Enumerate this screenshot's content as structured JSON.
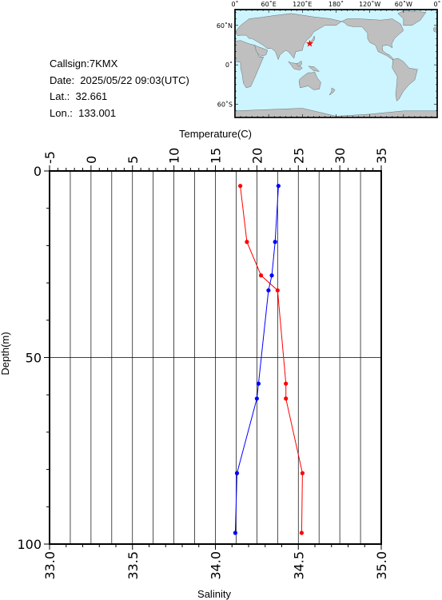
{
  "station": {
    "callsign": "Callsign:7KMX",
    "date": "Date:  2025/05/22 09:03(UTC)",
    "lat": "Lat.:  32.661",
    "lon": "Lon.:  133.001"
  },
  "map": {
    "lon_labels": [
      "0˚",
      "60˚E",
      "120˚E",
      "180˚",
      "120˚W",
      "60˚W",
      "0˚"
    ],
    "lat_labels": [
      "60˚N",
      "0˚",
      "60˚S"
    ],
    "ocean_color": "#ccf5ff",
    "land_color": "#bfbfbf",
    "marker_color": "#ff0000",
    "station_lat": 32.661,
    "station_lon": 133.001
  },
  "chart_data": {
    "type": "line",
    "title": "",
    "ylabel": "Depth(m)",
    "ylim": [
      100,
      0
    ],
    "y_ticks": [
      "0",
      "50",
      "100"
    ],
    "top_axis": {
      "label": "Temperature(C)",
      "range": [
        -5,
        35
      ],
      "ticks": [
        "-5",
        "0",
        "5",
        "10",
        "15",
        "20",
        "25",
        "30",
        "35"
      ]
    },
    "bottom_axis": {
      "label": "Salinity",
      "range": [
        33.0,
        35.0
      ],
      "ticks": [
        "33.0",
        "33.5",
        "34.0",
        "34.5",
        "35.0"
      ]
    },
    "grid": true,
    "series": [
      {
        "name": "Temperature(C)",
        "color": "#ff0000",
        "axis": "top",
        "points": [
          [
            18.0,
            4
          ],
          [
            18.8,
            19
          ],
          [
            20.5,
            28
          ],
          [
            22.5,
            32
          ],
          [
            23.5,
            57
          ],
          [
            23.5,
            61
          ],
          [
            25.5,
            81
          ],
          [
            25.4,
            97
          ]
        ]
      },
      {
        "name": "Salinity",
        "color": "#0000ff",
        "axis": "bottom",
        "points": [
          [
            34.38,
            4
          ],
          [
            34.36,
            19
          ],
          [
            34.34,
            28
          ],
          [
            34.32,
            32
          ],
          [
            34.26,
            57
          ],
          [
            34.25,
            61
          ],
          [
            34.13,
            81
          ],
          [
            34.12,
            97
          ]
        ]
      }
    ]
  }
}
